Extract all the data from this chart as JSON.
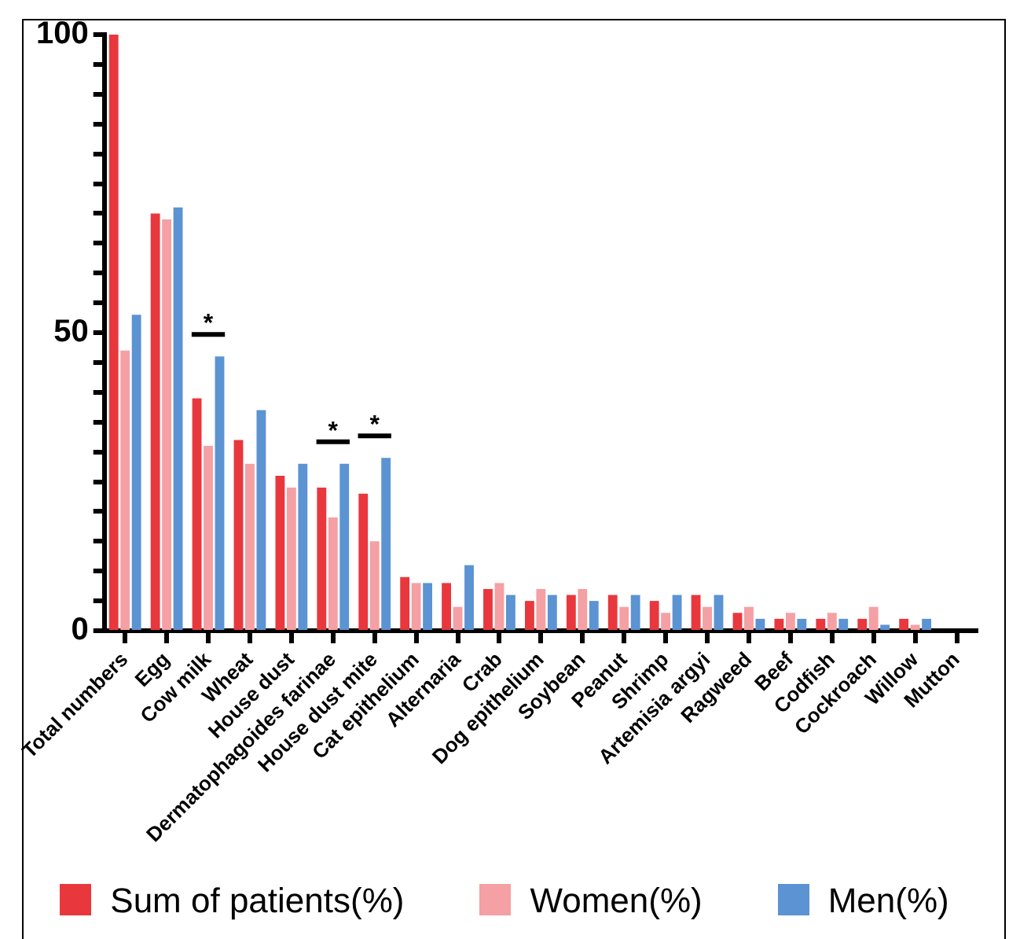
{
  "chart_data": {
    "type": "bar",
    "categories": [
      "Total numbers",
      "Egg",
      "Cow milk",
      "Wheat",
      "House dust",
      "Dermatophagoides farinae",
      "House dust mite",
      "Cat epithelium",
      "Alternaria",
      "Crab",
      "Dog epithelium",
      "Soybean",
      "Peanut",
      "Shrimp",
      "Artemisia argyi",
      "Ragweed",
      "Beef",
      "Codfish",
      "Cockroach",
      "Willow",
      "Mutton"
    ],
    "series": [
      {
        "name": "Sum of patients(%)",
        "color": "#e8383d",
        "values": [
          100,
          70,
          39,
          32,
          26,
          24,
          23,
          9,
          8,
          7,
          5,
          6,
          6,
          5,
          6,
          3,
          2,
          2,
          2,
          2,
          0
        ]
      },
      {
        "name": "Women(%)",
        "color": "#f4a0a4",
        "values": [
          47,
          69,
          31,
          28,
          24,
          19,
          15,
          8,
          4,
          8,
          7,
          7,
          4,
          3,
          4,
          4,
          3,
          3,
          4,
          1,
          0
        ]
      },
      {
        "name": "Men(%)",
        "color": "#5b93d3",
        "values": [
          53,
          71,
          46,
          37,
          28,
          28,
          29,
          8,
          11,
          6,
          6,
          5,
          6,
          6,
          6,
          2,
          2,
          2,
          1,
          2,
          0
        ]
      }
    ],
    "ylim": [
      0,
      100
    ],
    "yticks": [
      0,
      {
        "value": 5,
        "label": null
      },
      {
        "value": 10,
        "label": null
      },
      {
        "value": 15,
        "label": null
      },
      {
        "value": 20,
        "label": null
      },
      {
        "value": 25,
        "label": null
      },
      {
        "value": 30,
        "label": null
      },
      {
        "value": 35,
        "label": null
      },
      {
        "value": 40,
        "label": null
      },
      {
        "value": 45,
        "label": null
      },
      50,
      {
        "value": 55,
        "label": null
      },
      {
        "value": 60,
        "label": null
      },
      {
        "value": 65,
        "label": null
      },
      {
        "value": 70,
        "label": null
      },
      {
        "value": 75,
        "label": null
      },
      {
        "value": 80,
        "label": null
      },
      {
        "value": 85,
        "label": null
      },
      {
        "value": 90,
        "label": null
      },
      {
        "value": 95,
        "label": null
      },
      100
    ],
    "annotations": [
      {
        "text": "*",
        "x": "Cow milk",
        "y": 46
      },
      {
        "text": "*",
        "x": "Dermatophagoides farinae",
        "y": 28
      },
      {
        "text": "*",
        "x": "House dust mite",
        "y": 29
      }
    ],
    "grid": false,
    "legend": "bottom"
  }
}
